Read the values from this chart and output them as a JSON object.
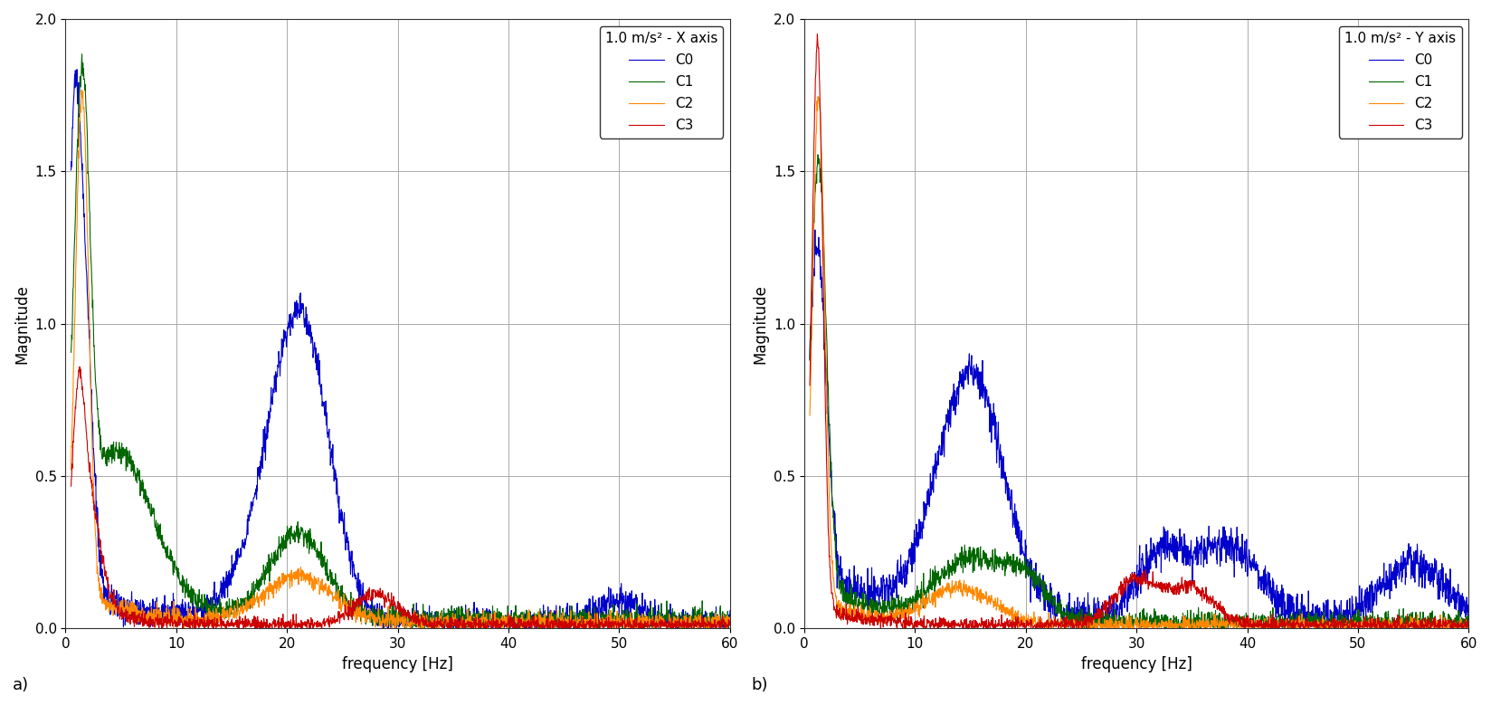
{
  "title_a": "1.0 m/s² - X axis",
  "title_b": "1.0 m/s² - Y axis",
  "xlabel": "frequency [Hz]",
  "ylabel": "Magnitude",
  "xlim": [
    0,
    60
  ],
  "ylim": [
    0,
    2.0
  ],
  "yticks": [
    0.0,
    0.5,
    1.0,
    1.5,
    2.0
  ],
  "xticks": [
    0,
    10,
    20,
    30,
    40,
    50,
    60
  ],
  "label_a": "a)",
  "label_b": "b)",
  "colors": {
    "C0": "#0000cc",
    "C1": "#006600",
    "C2": "#ff8800",
    "C3": "#cc0000"
  },
  "legend_labels": [
    "C0",
    "C1",
    "C2",
    "C3"
  ],
  "bg_color": "#ffffff",
  "line_width": 0.8,
  "seed_a": 42,
  "seed_b": 123
}
